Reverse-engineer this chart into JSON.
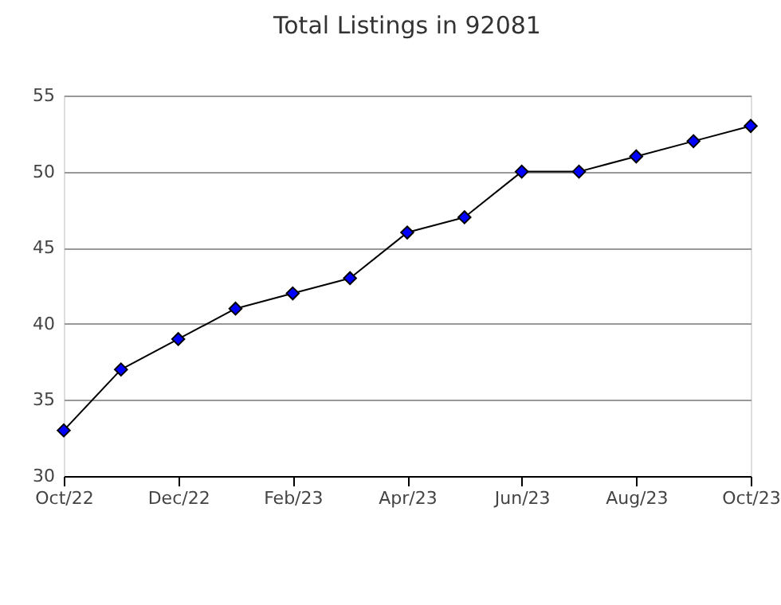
{
  "chart_data": {
    "type": "line",
    "title": "Total Listings in 92081",
    "categories": [
      "Oct/22",
      null,
      "Dec/22",
      null,
      "Feb/23",
      null,
      "Apr/23",
      null,
      "Jun/23",
      null,
      "Aug/23",
      null,
      "Oct/23"
    ],
    "series": [
      {
        "color": "#0000ff",
        "values": [
          33,
          37,
          39,
          41,
          42,
          43,
          46,
          47,
          50,
          50,
          51,
          52,
          53
        ]
      }
    ],
    "ylim": [
      30,
      55
    ],
    "yticks": [
      30,
      35,
      40,
      45,
      50,
      55
    ],
    "grid": "y",
    "marker": "diamond",
    "line_style": "solid"
  }
}
